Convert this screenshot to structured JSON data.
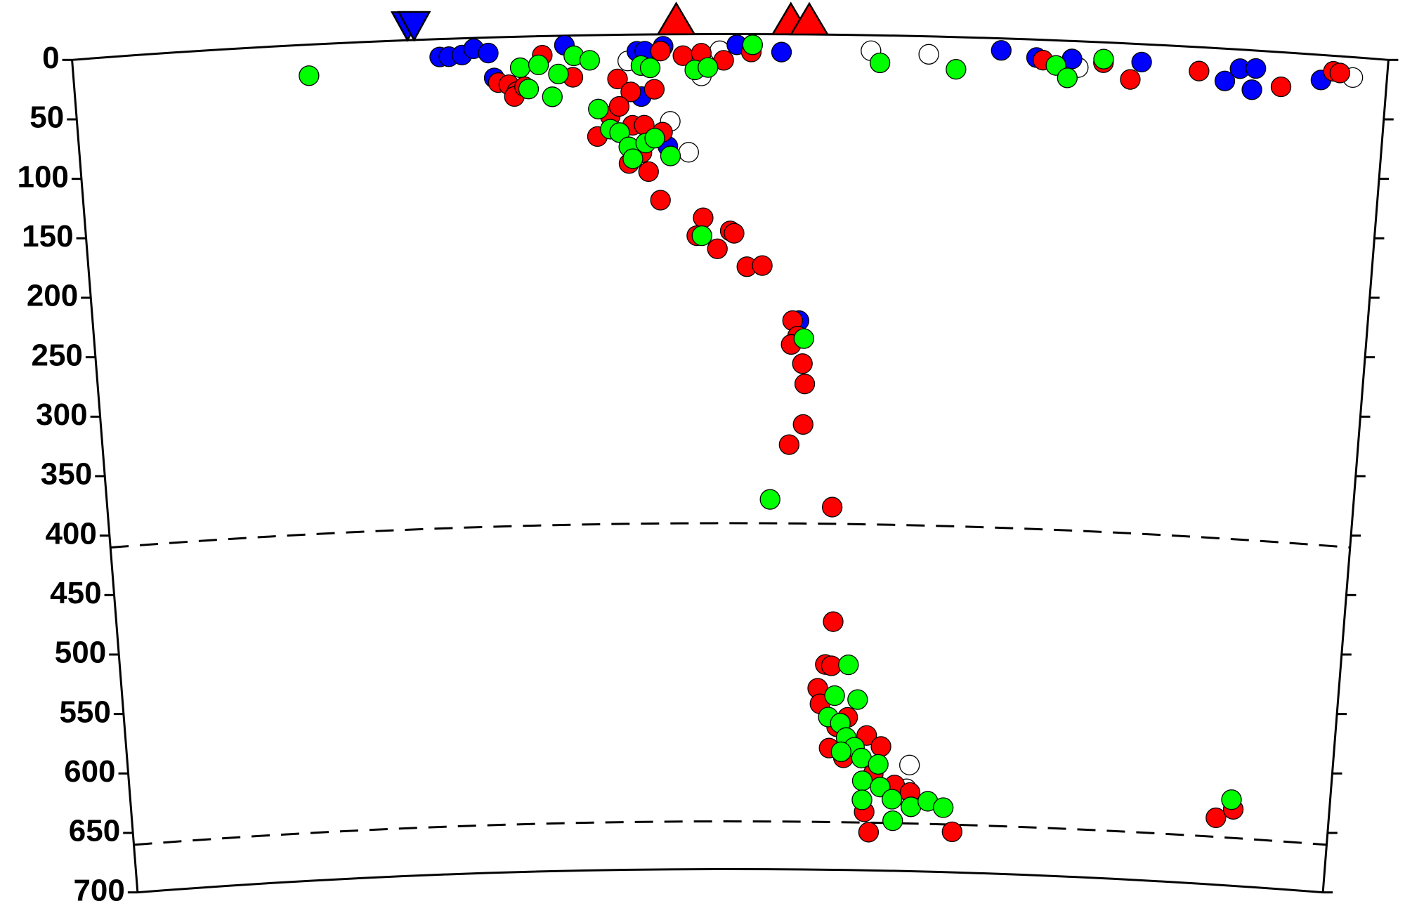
{
  "chart_data": {
    "type": "scatter",
    "xlim": [
      0,
      100
    ],
    "ylim": [
      0,
      700
    ],
    "y_inverted": true,
    "yticks": [
      0,
      50,
      100,
      150,
      200,
      250,
      300,
      350,
      400,
      450,
      500,
      550,
      600,
      650,
      700
    ],
    "reference_lines": [
      410,
      660
    ],
    "series": [
      {
        "color": "#ffffff",
        "marker": "circle",
        "x": [
          42.2,
          47.8,
          45.4,
          46.8,
          49.2,
          60.7,
          65.1,
          64.7,
          64.9,
          76.5,
          97.4
        ],
        "values": [
          22,
          35,
          73,
          99,
          14,
          13,
          15,
          631,
          611,
          22,
          17
        ]
      },
      {
        "color": "#0000ff",
        "marker": "circle",
        "x": [
          27.9,
          28.6,
          29.6,
          30.5,
          31.6,
          32.0,
          37.4,
          42.9,
          43.5,
          44.9,
          45.2,
          43.2,
          50.5,
          53.9,
          55.4,
          70.6,
          73.3,
          76.0,
          81.3,
          87.7,
          88.8,
          90.0,
          89.8,
          95.0
        ],
        "values": [
          15,
          15,
          14,
          9,
          13,
          34,
          8,
          14,
          14,
          10,
          94,
          52,
          9,
          15,
          240,
          10,
          15,
          15,
          15,
          27,
          16,
          15,
          33,
          21
        ]
      },
      {
        "color": "#ff0000",
        "marker": "circle",
        "x": [
          32.3,
          33.1,
          33.7,
          33.5,
          34.3,
          35.7,
          38.0,
          41.4,
          42.4,
          44.2,
          44.7,
          46.4,
          47.8,
          49.5,
          51.6,
          39.8,
          40.8,
          41.5,
          42.5,
          43.4,
          43.7,
          44.8,
          42.2,
          43.2,
          44.6,
          47.9,
          47.4,
          49.0,
          50.0,
          50.3,
          51.3,
          52.5,
          54.9,
          55.3,
          54.8,
          55.7,
          55.9,
          55.8,
          54.7,
          58.2,
          58.4,
          57.8,
          58.3,
          57.2,
          57.4,
          58.8,
          59.7,
          61.3,
          62.5,
          58.2,
          59.4,
          61.9,
          63.7,
          65.0,
          61.2,
          61.6,
          68.6,
          90.6,
          92.0,
          73.8,
          78.4,
          80.5,
          85.7,
          92.0,
          95.9,
          96.4
        ],
        "values": [
          38,
          40,
          46,
          50,
          42,
          16,
          35,
          37,
          48,
          46,
          14,
          18,
          16,
          22,
          15,
          85,
          68,
          60,
          76,
          76,
          115,
          82,
          108,
          99,
          139,
          154,
          169,
          180,
          165,
          167,
          195,
          194,
          240,
          253,
          260,
          276,
          293,
          327,
          344,
          396,
          492,
          528,
          529,
          548,
          561,
          580,
          572,
          587,
          596,
          598,
          606,
          619,
          628,
          634,
          651,
          668,
          666,
          644,
          636,
          17,
          17,
          30,
          20,
          29,
          13,
          14
        ]
      },
      {
        "color": "#00ff00",
        "marker": "circle",
        "x": [
          17.9,
          34.0,
          35.4,
          34.6,
          36.4,
          36.9,
          38.1,
          39.3,
          39.9,
          40.8,
          41.5,
          42.2,
          42.5,
          43.5,
          44.2,
          45.4,
          43.2,
          43.9,
          47.3,
          48.3,
          51.7,
          61.4,
          67.2,
          74.8,
          75.7,
          78.4,
          47.8,
          53.2,
          55.8,
          59.7,
          58.6,
          60.5,
          58.1,
          59.1,
          59.6,
          60.3,
          59.2,
          60.9,
          62.3,
          61.0,
          62.5,
          63.5,
          61.0,
          63.6,
          65.1,
          66.5,
          67.8,
          91.8
        ],
        "values": [
          26,
          26,
          24,
          44,
          51,
          32,
          17,
          21,
          62,
          79,
          82,
          94,
          104,
          91,
          87,
          102,
          26,
          28,
          30,
          28,
          9,
          23,
          27,
          21,
          31,
          14,
          169,
          390,
          255,
          528,
          554,
          557,
          572,
          577,
          589,
          597,
          601,
          606,
          611,
          625,
          630,
          640,
          641,
          658,
          646,
          641,
          646,
          628
        ]
      },
      {
        "color": "#0000ff",
        "marker": "triangle-down",
        "x": [
          25.5,
          26.0
        ],
        "values": [
          0,
          0
        ]
      },
      {
        "color": "#ff0000",
        "marker": "triangle",
        "x": [
          45.9,
          54.6,
          56.0
        ],
        "values": [
          0,
          0,
          0
        ]
      }
    ]
  }
}
